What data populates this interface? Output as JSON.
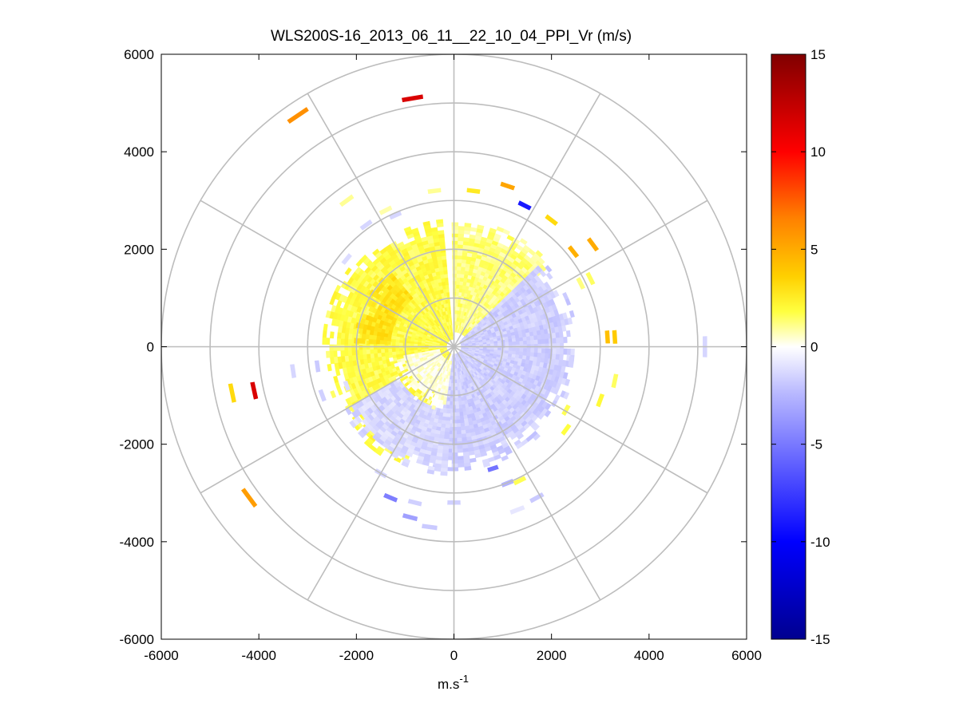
{
  "chart_data": {
    "type": "heatmap",
    "title": "WLS200S-16_2013_06_11__22_10_04_PPI_Vr (m/s)",
    "xlabel_base": "m.s",
    "xlabel_sup": "-1",
    "ylabel": "",
    "xlim": [
      -6000,
      6000
    ],
    "ylim": [
      -6000,
      6000
    ],
    "xticks": [
      -6000,
      -4000,
      -2000,
      0,
      2000,
      4000,
      6000
    ],
    "yticks": [
      -6000,
      -4000,
      -2000,
      0,
      2000,
      4000,
      6000
    ],
    "xtick_labels": [
      "-6000",
      "-4000",
      "-2000",
      "0",
      "2000",
      "4000",
      "6000"
    ],
    "ytick_labels": [
      "-6000",
      "-4000",
      "-2000",
      "0",
      "2000",
      "4000",
      "6000"
    ],
    "polar_grid": {
      "ring_radii": [
        1000,
        2000,
        3000,
        4000,
        5000,
        6000
      ],
      "spoke_angles_deg": [
        0,
        30,
        60,
        90,
        120,
        150,
        180,
        210,
        240,
        270,
        300,
        330
      ]
    },
    "colorbar": {
      "range": [
        -15,
        15
      ],
      "ticks": [
        15,
        10,
        5,
        0,
        -5,
        -10,
        -15
      ],
      "tick_labels": [
        "15",
        "10",
        "5",
        "0",
        "-5",
        "-10",
        "-15"
      ],
      "colormap": "blue-white-yellow-red"
    },
    "field": {
      "description_of_regions": "approximate sector-averaged radial velocity (m/s)",
      "dense_regions": [
        {
          "name": "north-west yellow",
          "theta_deg": [
            95,
            245
          ],
          "range_m": [
            150,
            2650
          ],
          "vr": 1.8
        },
        {
          "name": "north yellow",
          "theta_deg": [
            40,
            90
          ],
          "range_m": [
            300,
            2600
          ],
          "vr": 1.2
        },
        {
          "name": "west orange core",
          "theta_deg": [
            130,
            175
          ],
          "range_m": [
            1300,
            2100
          ],
          "vr": 2.9
        },
        {
          "name": "east blue",
          "theta_deg": [
            -100,
            42
          ],
          "range_m": [
            150,
            2500
          ],
          "vr": -1.6
        },
        {
          "name": "south blue",
          "theta_deg": [
            -150,
            -95
          ],
          "range_m": [
            1300,
            2650
          ],
          "vr": -1.3
        },
        {
          "name": "south-west near white",
          "theta_deg": [
            -170,
            -100
          ],
          "range_m": [
            300,
            1300
          ],
          "vr": 0.3
        }
      ],
      "sparse_gates": [
        {
          "x": -850,
          "y": 5100,
          "vr": 11.5
        },
        {
          "x": -3200,
          "y": 4750,
          "vr": 6.0
        },
        {
          "x": -4100,
          "y": -900,
          "vr": 11.5
        },
        {
          "x": -4550,
          "y": -950,
          "vr": 3.2
        },
        {
          "x": -4200,
          "y": -3100,
          "vr": 5.5
        },
        {
          "x": 5150,
          "y": 0,
          "vr": -1.4
        },
        {
          "x": 1450,
          "y": 2900,
          "vr": -9.0
        },
        {
          "x": 1100,
          "y": 3300,
          "vr": 5.2
        },
        {
          "x": 2850,
          "y": 2100,
          "vr": 5.0
        },
        {
          "x": 3300,
          "y": 200,
          "vr": 3.8
        },
        {
          "x": 3150,
          "y": 200,
          "vr": 4.2
        },
        {
          "x": 2450,
          "y": 1950,
          "vr": 4.8
        },
        {
          "x": 2000,
          "y": 2600,
          "vr": 3.2
        },
        {
          "x": 2600,
          "y": 1300,
          "vr": 1.2
        },
        {
          "x": 3000,
          "y": -1100,
          "vr": 2.0
        },
        {
          "x": 3300,
          "y": -700,
          "vr": 1.5
        },
        {
          "x": -2800,
          "y": -400,
          "vr": -1.8
        },
        {
          "x": -3300,
          "y": -500,
          "vr": -1.4
        },
        {
          "x": -2200,
          "y": -800,
          "vr": -1.1
        },
        {
          "x": -2700,
          "y": -1000,
          "vr": -1.6
        },
        {
          "x": -1500,
          "y": -2600,
          "vr": -1.4
        },
        {
          "x": -1300,
          "y": -3100,
          "vr": -4.8
        },
        {
          "x": -800,
          "y": -3200,
          "vr": -1.6
        },
        {
          "x": -900,
          "y": -3500,
          "vr": -3.4
        },
        {
          "x": -500,
          "y": -3700,
          "vr": -1.8
        },
        {
          "x": 0,
          "y": -3200,
          "vr": -1.6
        },
        {
          "x": 800,
          "y": -2500,
          "vr": -5.2
        },
        {
          "x": 1100,
          "y": -2800,
          "vr": -2.6
        },
        {
          "x": 1700,
          "y": -3100,
          "vr": -1.8
        },
        {
          "x": 1350,
          "y": -2750,
          "vr": 1.6
        },
        {
          "x": 1300,
          "y": -3350,
          "vr": -0.8
        },
        {
          "x": -2200,
          "y": 3000,
          "vr": 1.0
        },
        {
          "x": -1800,
          "y": 2500,
          "vr": -1.4
        },
        {
          "x": -1200,
          "y": 2700,
          "vr": -1.4
        },
        {
          "x": -400,
          "y": 3200,
          "vr": 1.0
        },
        {
          "x": 400,
          "y": 3200,
          "vr": 2.6
        },
        {
          "x": -2200,
          "y": 1800,
          "vr": -1.2
        },
        {
          "x": 2300,
          "y": -1300,
          "vr": 1.6
        },
        {
          "x": 2300,
          "y": -1700,
          "vr": 1.8
        },
        {
          "x": -1400,
          "y": 2800,
          "vr": 0.8
        },
        {
          "x": 2800,
          "y": 1400,
          "vr": 1.5
        },
        {
          "x": 2400,
          "y": -300,
          "vr": -1.5
        }
      ]
    }
  }
}
